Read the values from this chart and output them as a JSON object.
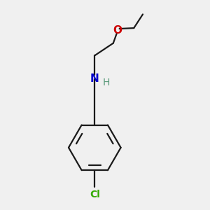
{
  "background_color": "#f0f0f0",
  "bond_color": "#1a1a1a",
  "N_color": "#0000cc",
  "H_color": "#5a9a7a",
  "O_color": "#cc0000",
  "Cl_color": "#33aa00",
  "bond_width": 1.6,
  "figsize": [
    3.0,
    3.0
  ],
  "dpi": 100,
  "xlim": [
    -1.2,
    1.2
  ],
  "ylim": [
    -1.6,
    1.4
  ]
}
